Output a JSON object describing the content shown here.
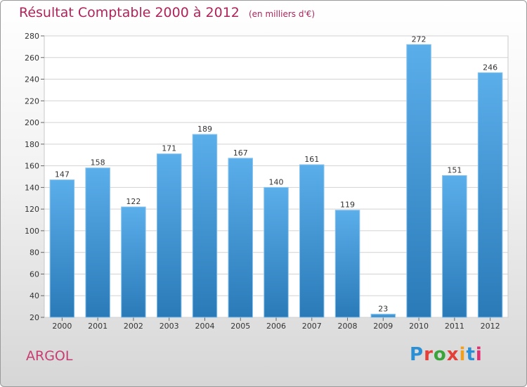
{
  "header": {
    "title": "Résultat Comptable 2000 à 2012",
    "subtitle": "(en milliers d'€)"
  },
  "footer": {
    "commune": "ARGOL",
    "brand_letters": [
      "P",
      "r",
      "o",
      "x",
      "i",
      "t",
      "i"
    ],
    "brand_colors": [
      "#2a8fd4",
      "#e3403a",
      "#3aa33a",
      "#e3403a",
      "#f0a020",
      "#2a8fd4",
      "#e03070"
    ]
  },
  "chart_data": {
    "type": "bar",
    "title": "Résultat Comptable 2000 à 2012",
    "subtitle": "(en milliers d'€)",
    "xlabel": "",
    "ylabel": "",
    "categories": [
      "2000",
      "2001",
      "2002",
      "2003",
      "2004",
      "2005",
      "2006",
      "2007",
      "2008",
      "2009",
      "2010",
      "2011",
      "2012"
    ],
    "values": [
      147,
      158,
      122,
      171,
      189,
      167,
      140,
      161,
      119,
      23,
      272,
      151,
      246
    ],
    "ylim": [
      20,
      280
    ],
    "yticks": [
      20,
      40,
      60,
      80,
      100,
      120,
      140,
      160,
      180,
      200,
      220,
      240,
      260,
      280
    ],
    "grid": true,
    "bar_color_top": "#5aaeea",
    "bar_color_bottom": "#2a7ab8"
  }
}
